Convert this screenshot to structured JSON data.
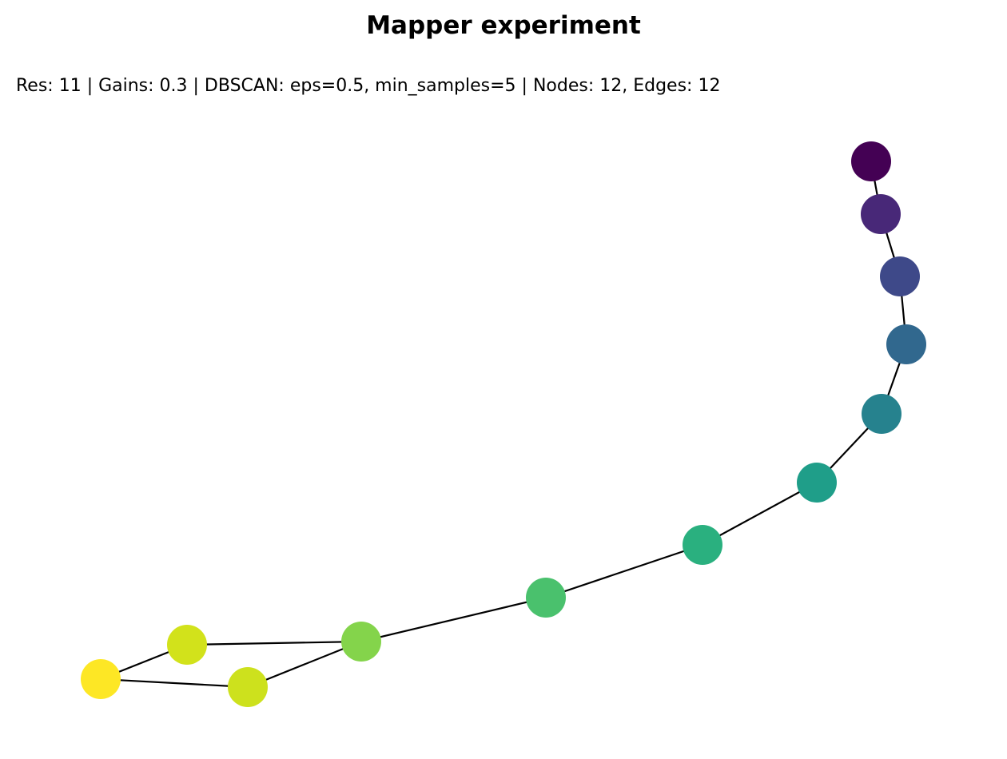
{
  "title": "Mapper experiment",
  "subtitle": "Res: 11 | Gains: 0.3 | DBSCAN: eps=0.5, min_samples=5 | Nodes: 12, Edges: 12",
  "graph": {
    "edge_color": "#000000",
    "nodes": [
      {
        "id": 0,
        "color": "#440154"
      },
      {
        "id": 1,
        "color": "#482878"
      },
      {
        "id": 2,
        "color": "#3e4989"
      },
      {
        "id": 3,
        "color": "#31688e"
      },
      {
        "id": 4,
        "color": "#26828e"
      },
      {
        "id": 5,
        "color": "#1f9e89"
      },
      {
        "id": 6,
        "color": "#2ab07f"
      },
      {
        "id": 7,
        "color": "#4ac16d"
      },
      {
        "id": 8,
        "color": "#84d44b"
      },
      {
        "id": 9,
        "color": "#d2e21b"
      },
      {
        "id": 10,
        "color": "#cde11d"
      },
      {
        "id": 11,
        "color": "#fde725"
      }
    ],
    "edges": [
      [
        0,
        1
      ],
      [
        1,
        2
      ],
      [
        2,
        3
      ],
      [
        3,
        4
      ],
      [
        4,
        5
      ],
      [
        5,
        6
      ],
      [
        6,
        7
      ],
      [
        7,
        8
      ],
      [
        8,
        9
      ],
      [
        8,
        10
      ],
      [
        9,
        11
      ],
      [
        10,
        11
      ]
    ]
  }
}
